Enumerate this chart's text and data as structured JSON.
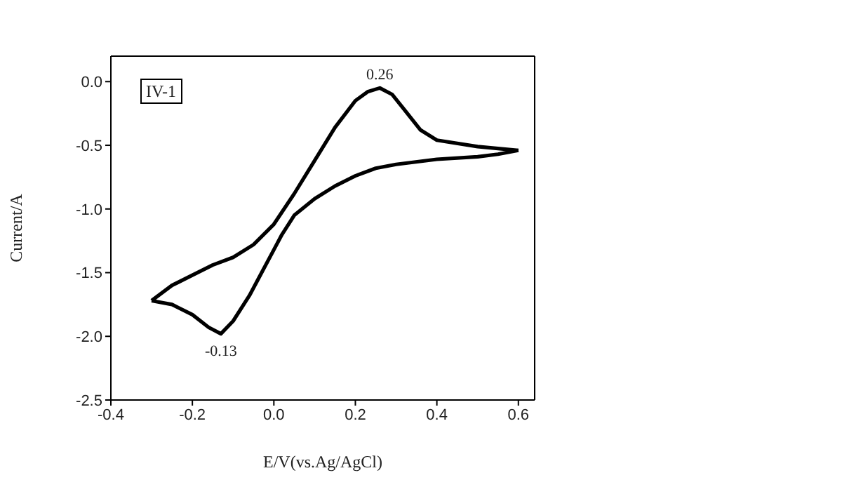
{
  "chart_data": {
    "type": "line",
    "xlabel": "E/V(vs.Ag/AgCl)",
    "ylabel": "Current/A",
    "xlim": [
      -0.4,
      0.64
    ],
    "xticks": [
      -0.4,
      -0.2,
      {
        "value": 0,
        "label": "0.0"
      },
      0.2,
      0.4,
      0.6
    ],
    "ylim": [
      -2.5,
      0.2
    ],
    "yticks": [
      -2.5,
      {
        "value": -2,
        "label": "-2.0"
      },
      -1.5,
      {
        "value": -1,
        "label": "-1.0"
      },
      -0.5,
      {
        "value": 0,
        "label": "0.0"
      }
    ],
    "annotations": [
      "IV-1",
      {
        "text": "0.26",
        "x": 0.26,
        "y": -0.05
      },
      {
        "text": "-0.13",
        "x": -0.13,
        "y": -1.98
      }
    ],
    "series": [
      {
        "color": "#000000",
        "x": [
          -0.3,
          -0.25,
          -0.2,
          -0.15,
          -0.1,
          -0.05,
          0,
          0.05,
          0.1,
          0.15,
          0.2,
          0.23,
          0.26,
          0.29,
          0.32,
          0.36,
          0.4,
          0.5,
          0.6
        ],
        "values": [
          -1.72,
          -1.6,
          -1.52,
          -1.44,
          -1.38,
          -1.28,
          -1.12,
          -0.88,
          -0.62,
          -0.36,
          -0.15,
          -0.08,
          -0.05,
          -0.1,
          -0.22,
          -0.38,
          -0.46,
          -0.51,
          -0.54
        ]
      },
      {
        "color": "#000000",
        "x": [
          0.6,
          0.55,
          0.5,
          0.4,
          0.3,
          0.25,
          0.2,
          0.15,
          0.1,
          0.05,
          0.02,
          0,
          -0.03,
          -0.06,
          -0.1,
          -0.13,
          -0.16,
          -0.2,
          -0.25,
          -0.3
        ],
        "values": [
          -0.54,
          -0.57,
          -0.59,
          -0.61,
          -0.65,
          -0.68,
          -0.74,
          -0.82,
          -0.92,
          -1.05,
          -1.2,
          -1.32,
          -1.5,
          -1.68,
          -1.88,
          -1.98,
          -1.93,
          -1.83,
          -1.75,
          -1.72
        ]
      }
    ]
  }
}
